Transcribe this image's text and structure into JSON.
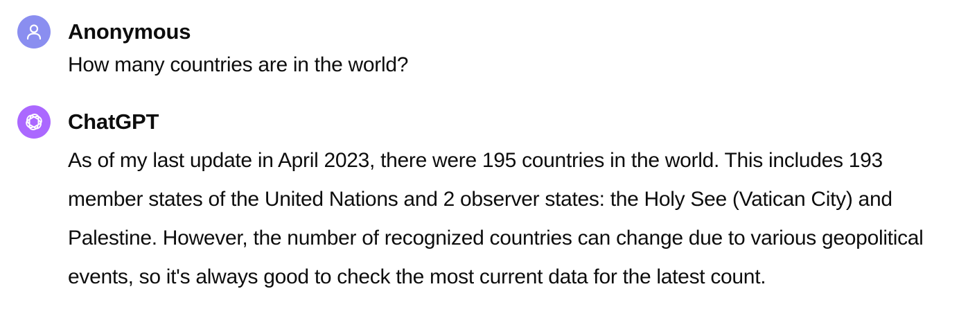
{
  "conversation": {
    "messages": [
      {
        "role": "user",
        "author": "Anonymous",
        "avatar_icon": "user-icon",
        "avatar_color": "#8a8ef0",
        "text": "How many countries are in the world?"
      },
      {
        "role": "assistant",
        "author": "ChatGPT",
        "avatar_icon": "openai-logo-icon",
        "avatar_color": "#ab68ff",
        "text": "As of my last update in April 2023, there were 195 countries in the world. This includes 193 member states of the United Nations and 2 observer states: the Holy See (Vatican City) and Palestine. However, the number of recognized countries can change due to various geopolitical events, so it's always good to check the most current data for the latest count."
      }
    ]
  }
}
